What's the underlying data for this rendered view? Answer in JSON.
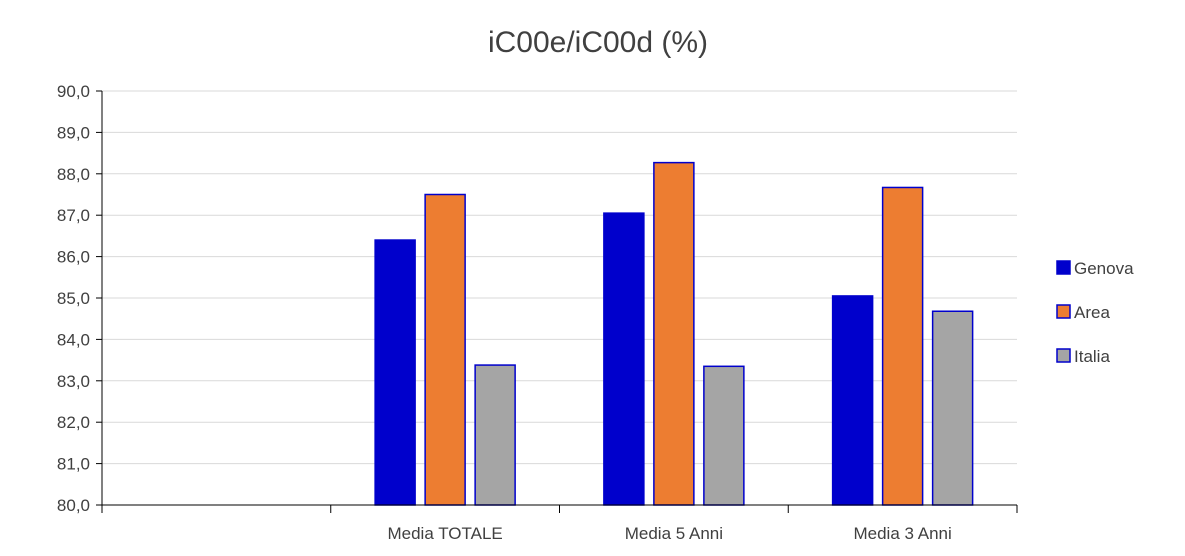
{
  "chart_data": {
    "type": "bar",
    "title": "iC00e/iC00d (%)",
    "xlabel": "",
    "ylabel": "",
    "categories": [
      "",
      "Media TOTALE",
      "Media 5 Anni",
      "Media 3 Anni"
    ],
    "series": [
      {
        "name": "Genova",
        "values": [
          null,
          86.4,
          87.05,
          85.05
        ]
      },
      {
        "name": "Area",
        "values": [
          null,
          87.5,
          88.27,
          87.67
        ]
      },
      {
        "name": "Italia",
        "values": [
          null,
          83.38,
          83.35,
          84.68
        ]
      }
    ],
    "ylim": [
      80,
      90
    ],
    "yticks": [
      "80,0",
      "81,0",
      "82,0",
      "83,0",
      "84,0",
      "85,0",
      "86,0",
      "87,0",
      "88,0",
      "89,0",
      "90,0"
    ],
    "grid": true,
    "legend_position": "right",
    "colors": {
      "Genova": "#0000CC",
      "Area": "#ED7D31",
      "Italia": "#A5A5A5",
      "bar_outline": "#0000CC",
      "grid": "#D9D9D9",
      "axis": "#000000"
    }
  }
}
